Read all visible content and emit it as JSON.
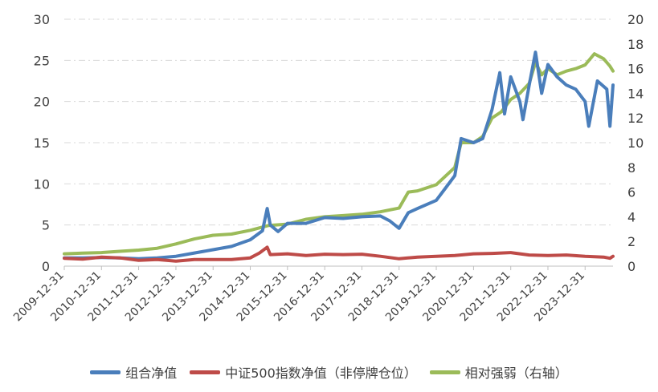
{
  "chart_data": {
    "type": "line",
    "x_categories": [
      "2009-12-31",
      "2010-12-31",
      "2011-12-31",
      "2012-12-31",
      "2013-12-31",
      "2014-12-31",
      "2015-12-31",
      "2016-12-31",
      "2017-12-31",
      "2018-12-31",
      "2019-12-31",
      "2020-12-31",
      "2021-12-31",
      "2022-12-31",
      "2023-12-31"
    ],
    "y_left": {
      "ylim": [
        0,
        30
      ],
      "ticks": [
        0,
        5,
        10,
        15,
        20,
        25,
        30
      ]
    },
    "y_right": {
      "ylim": [
        0,
        20
      ],
      "ticks": [
        0,
        2,
        4,
        6,
        8,
        10,
        12,
        14,
        16,
        18,
        20
      ]
    },
    "grid": "horizontal dashed",
    "legend_position": "bottom",
    "x_time_range": [
      "2009-12-31",
      "2024-09-30"
    ],
    "series": [
      {
        "name": "组合净值",
        "axis": "left",
        "color": "#4A7EBB",
        "points": [
          [
            "2009-12-31",
            1.0
          ],
          [
            "2010-06-30",
            1.0
          ],
          [
            "2010-12-31",
            1.05
          ],
          [
            "2011-06-30",
            1.0
          ],
          [
            "2011-12-31",
            0.9
          ],
          [
            "2012-06-30",
            1.0
          ],
          [
            "2012-12-31",
            1.2
          ],
          [
            "2013-06-30",
            1.6
          ],
          [
            "2013-12-31",
            2.0
          ],
          [
            "2014-06-30",
            2.4
          ],
          [
            "2014-12-31",
            3.2
          ],
          [
            "2015-04-30",
            4.3
          ],
          [
            "2015-06-15",
            7.0
          ],
          [
            "2015-07-15",
            5.0
          ],
          [
            "2015-09-30",
            4.2
          ],
          [
            "2015-12-31",
            5.2
          ],
          [
            "2016-06-30",
            5.2
          ],
          [
            "2016-12-31",
            5.9
          ],
          [
            "2017-06-30",
            5.8
          ],
          [
            "2017-12-31",
            6.0
          ],
          [
            "2018-06-30",
            6.1
          ],
          [
            "2018-09-30",
            5.5
          ],
          [
            "2018-12-31",
            4.6
          ],
          [
            "2019-03-31",
            6.5
          ],
          [
            "2019-06-30",
            7.0
          ],
          [
            "2019-12-31",
            8.0
          ],
          [
            "2020-03-31",
            9.5
          ],
          [
            "2020-06-30",
            11.0
          ],
          [
            "2020-08-31",
            15.5
          ],
          [
            "2020-12-31",
            15.0
          ],
          [
            "2021-03-31",
            15.5
          ],
          [
            "2021-06-30",
            19.0
          ],
          [
            "2021-09-15",
            23.5
          ],
          [
            "2021-10-31",
            18.5
          ],
          [
            "2021-12-31",
            23.0
          ],
          [
            "2022-03-31",
            20.0
          ],
          [
            "2022-04-30",
            17.8
          ],
          [
            "2022-06-30",
            22.0
          ],
          [
            "2022-08-31",
            26.0
          ],
          [
            "2022-10-31",
            21.0
          ],
          [
            "2022-12-31",
            24.5
          ],
          [
            "2023-03-31",
            23.0
          ],
          [
            "2023-06-30",
            22.0
          ],
          [
            "2023-09-30",
            21.5
          ],
          [
            "2023-12-31",
            20.0
          ],
          [
            "2024-02-05",
            17.0
          ],
          [
            "2024-04-30",
            22.5
          ],
          [
            "2024-07-31",
            21.5
          ],
          [
            "2024-08-31",
            17.0
          ],
          [
            "2024-09-30",
            22.0
          ]
        ]
      },
      {
        "name": "中证500指数净值（非停牌仓位）",
        "axis": "left",
        "color": "#BE4B48",
        "points": [
          [
            "2009-12-31",
            0.95
          ],
          [
            "2010-06-30",
            0.85
          ],
          [
            "2010-12-31",
            1.1
          ],
          [
            "2011-06-30",
            1.0
          ],
          [
            "2011-12-31",
            0.7
          ],
          [
            "2012-06-30",
            0.8
          ],
          [
            "2012-12-31",
            0.6
          ],
          [
            "2013-06-30",
            0.8
          ],
          [
            "2013-12-31",
            0.8
          ],
          [
            "2014-06-30",
            0.8
          ],
          [
            "2014-12-31",
            1.0
          ],
          [
            "2015-03-31",
            1.6
          ],
          [
            "2015-06-15",
            2.3
          ],
          [
            "2015-07-15",
            1.4
          ],
          [
            "2015-12-31",
            1.5
          ],
          [
            "2016-06-30",
            1.3
          ],
          [
            "2016-12-31",
            1.45
          ],
          [
            "2017-06-30",
            1.4
          ],
          [
            "2017-12-31",
            1.45
          ],
          [
            "2018-06-30",
            1.2
          ],
          [
            "2018-12-31",
            0.9
          ],
          [
            "2019-06-30",
            1.1
          ],
          [
            "2019-12-31",
            1.2
          ],
          [
            "2020-06-30",
            1.3
          ],
          [
            "2020-12-31",
            1.5
          ],
          [
            "2021-06-30",
            1.55
          ],
          [
            "2021-12-31",
            1.65
          ],
          [
            "2022-06-30",
            1.35
          ],
          [
            "2022-12-31",
            1.3
          ],
          [
            "2023-06-30",
            1.35
          ],
          [
            "2023-12-31",
            1.2
          ],
          [
            "2024-06-30",
            1.1
          ],
          [
            "2024-08-31",
            0.95
          ],
          [
            "2024-09-30",
            1.2
          ]
        ]
      },
      {
        "name": "相对强弱（右轴）",
        "axis": "right",
        "color": "#9BBB59",
        "points": [
          [
            "2009-12-31",
            1.0
          ],
          [
            "2010-06-30",
            1.05
          ],
          [
            "2010-12-31",
            1.1
          ],
          [
            "2011-06-30",
            1.2
          ],
          [
            "2011-12-31",
            1.3
          ],
          [
            "2012-06-30",
            1.45
          ],
          [
            "2012-12-31",
            1.8
          ],
          [
            "2013-06-30",
            2.2
          ],
          [
            "2013-12-31",
            2.5
          ],
          [
            "2014-06-30",
            2.6
          ],
          [
            "2014-12-31",
            2.9
          ],
          [
            "2015-06-30",
            3.3
          ],
          [
            "2015-12-31",
            3.4
          ],
          [
            "2016-06-30",
            3.8
          ],
          [
            "2016-12-31",
            4.0
          ],
          [
            "2017-06-30",
            4.1
          ],
          [
            "2017-12-31",
            4.2
          ],
          [
            "2018-06-30",
            4.4
          ],
          [
            "2018-12-31",
            4.7
          ],
          [
            "2019-03-31",
            6.0
          ],
          [
            "2019-06-30",
            6.1
          ],
          [
            "2019-12-31",
            6.6
          ],
          [
            "2020-06-30",
            8.0
          ],
          [
            "2020-08-31",
            10.0
          ],
          [
            "2020-12-31",
            10.0
          ],
          [
            "2021-03-31",
            10.5
          ],
          [
            "2021-06-30",
            12.0
          ],
          [
            "2021-09-30",
            12.5
          ],
          [
            "2021-12-31",
            13.5
          ],
          [
            "2022-03-31",
            14.0
          ],
          [
            "2022-06-30",
            14.8
          ],
          [
            "2022-08-31",
            16.5
          ],
          [
            "2022-10-31",
            15.5
          ],
          [
            "2022-12-31",
            16.0
          ],
          [
            "2023-03-31",
            15.5
          ],
          [
            "2023-06-30",
            15.8
          ],
          [
            "2023-09-30",
            16.0
          ],
          [
            "2023-12-31",
            16.3
          ],
          [
            "2024-03-31",
            17.2
          ],
          [
            "2024-06-30",
            16.8
          ],
          [
            "2024-08-31",
            16.2
          ],
          [
            "2024-09-30",
            15.8
          ]
        ]
      }
    ]
  },
  "legend": {
    "items": [
      {
        "label": "组合净值",
        "color": "#4A7EBB"
      },
      {
        "label": "中证500指数净值（非停牌仓位）",
        "color": "#BE4B48"
      },
      {
        "label": "相对强弱（右轴）",
        "color": "#9BBB59"
      }
    ]
  }
}
